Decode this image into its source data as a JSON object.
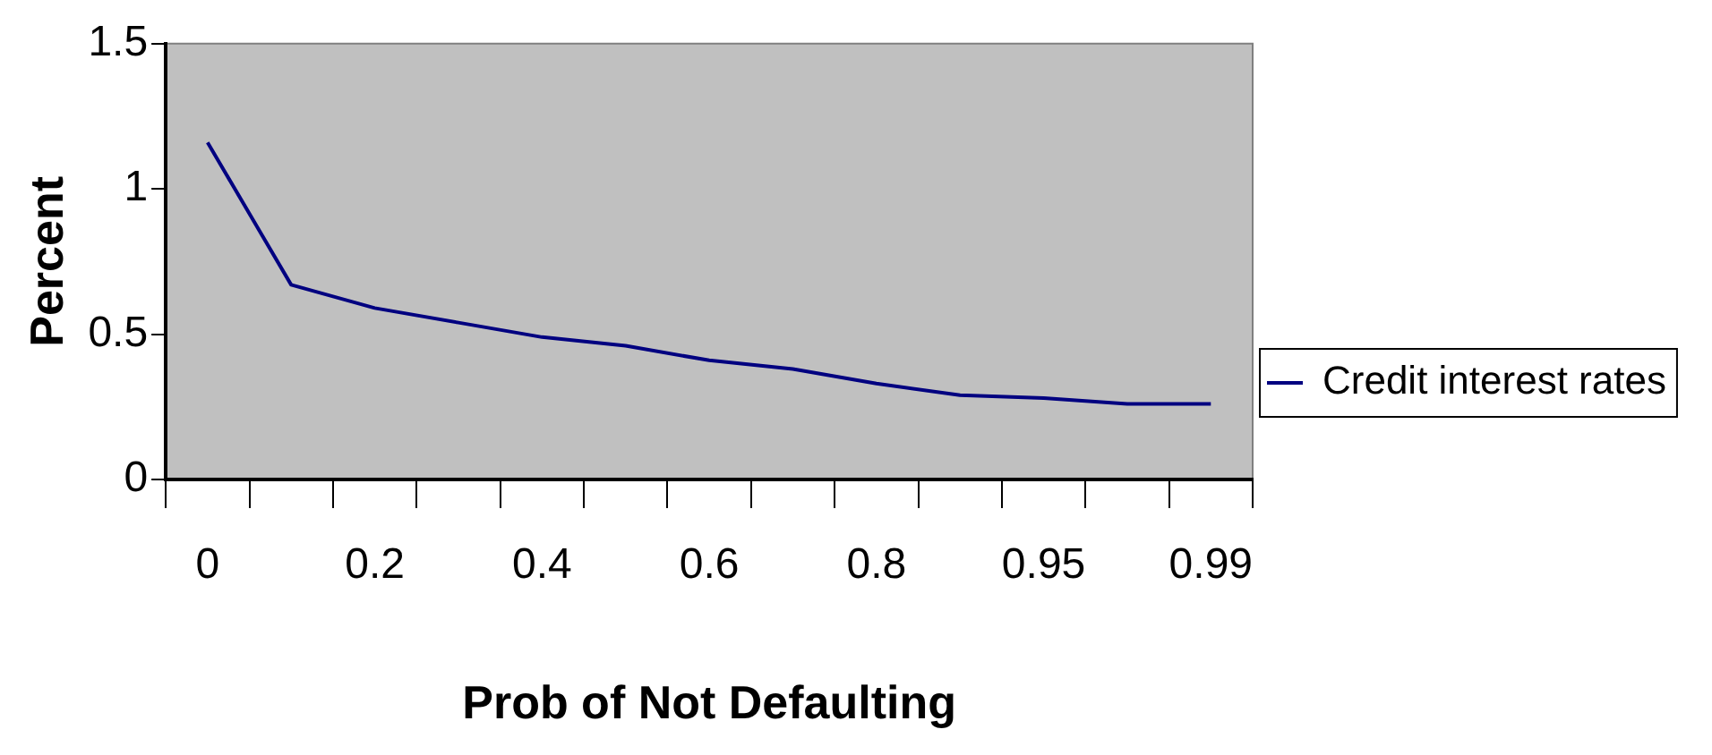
{
  "chart_data": {
    "type": "line",
    "xlabel": "Prob of Not Defaulting",
    "ylabel": "Percent",
    "categories": [
      "0",
      null,
      "0.2",
      null,
      "0.4",
      null,
      "0.6",
      null,
      "0.8",
      null,
      "0.95",
      null,
      "0.99"
    ],
    "series": [
      {
        "name": "Credit interest rates",
        "color": "#000080",
        "values": [
          1.16,
          0.67,
          0.59,
          0.54,
          0.49,
          0.46,
          0.41,
          0.38,
          0.33,
          0.29,
          0.28,
          0.26,
          0.26
        ]
      }
    ],
    "ylim": [
      0,
      1.5
    ],
    "yticks": [
      0,
      0.5,
      1,
      1.5
    ],
    "grid": false,
    "legend": "right",
    "marker": "none",
    "line_style": "solid"
  }
}
